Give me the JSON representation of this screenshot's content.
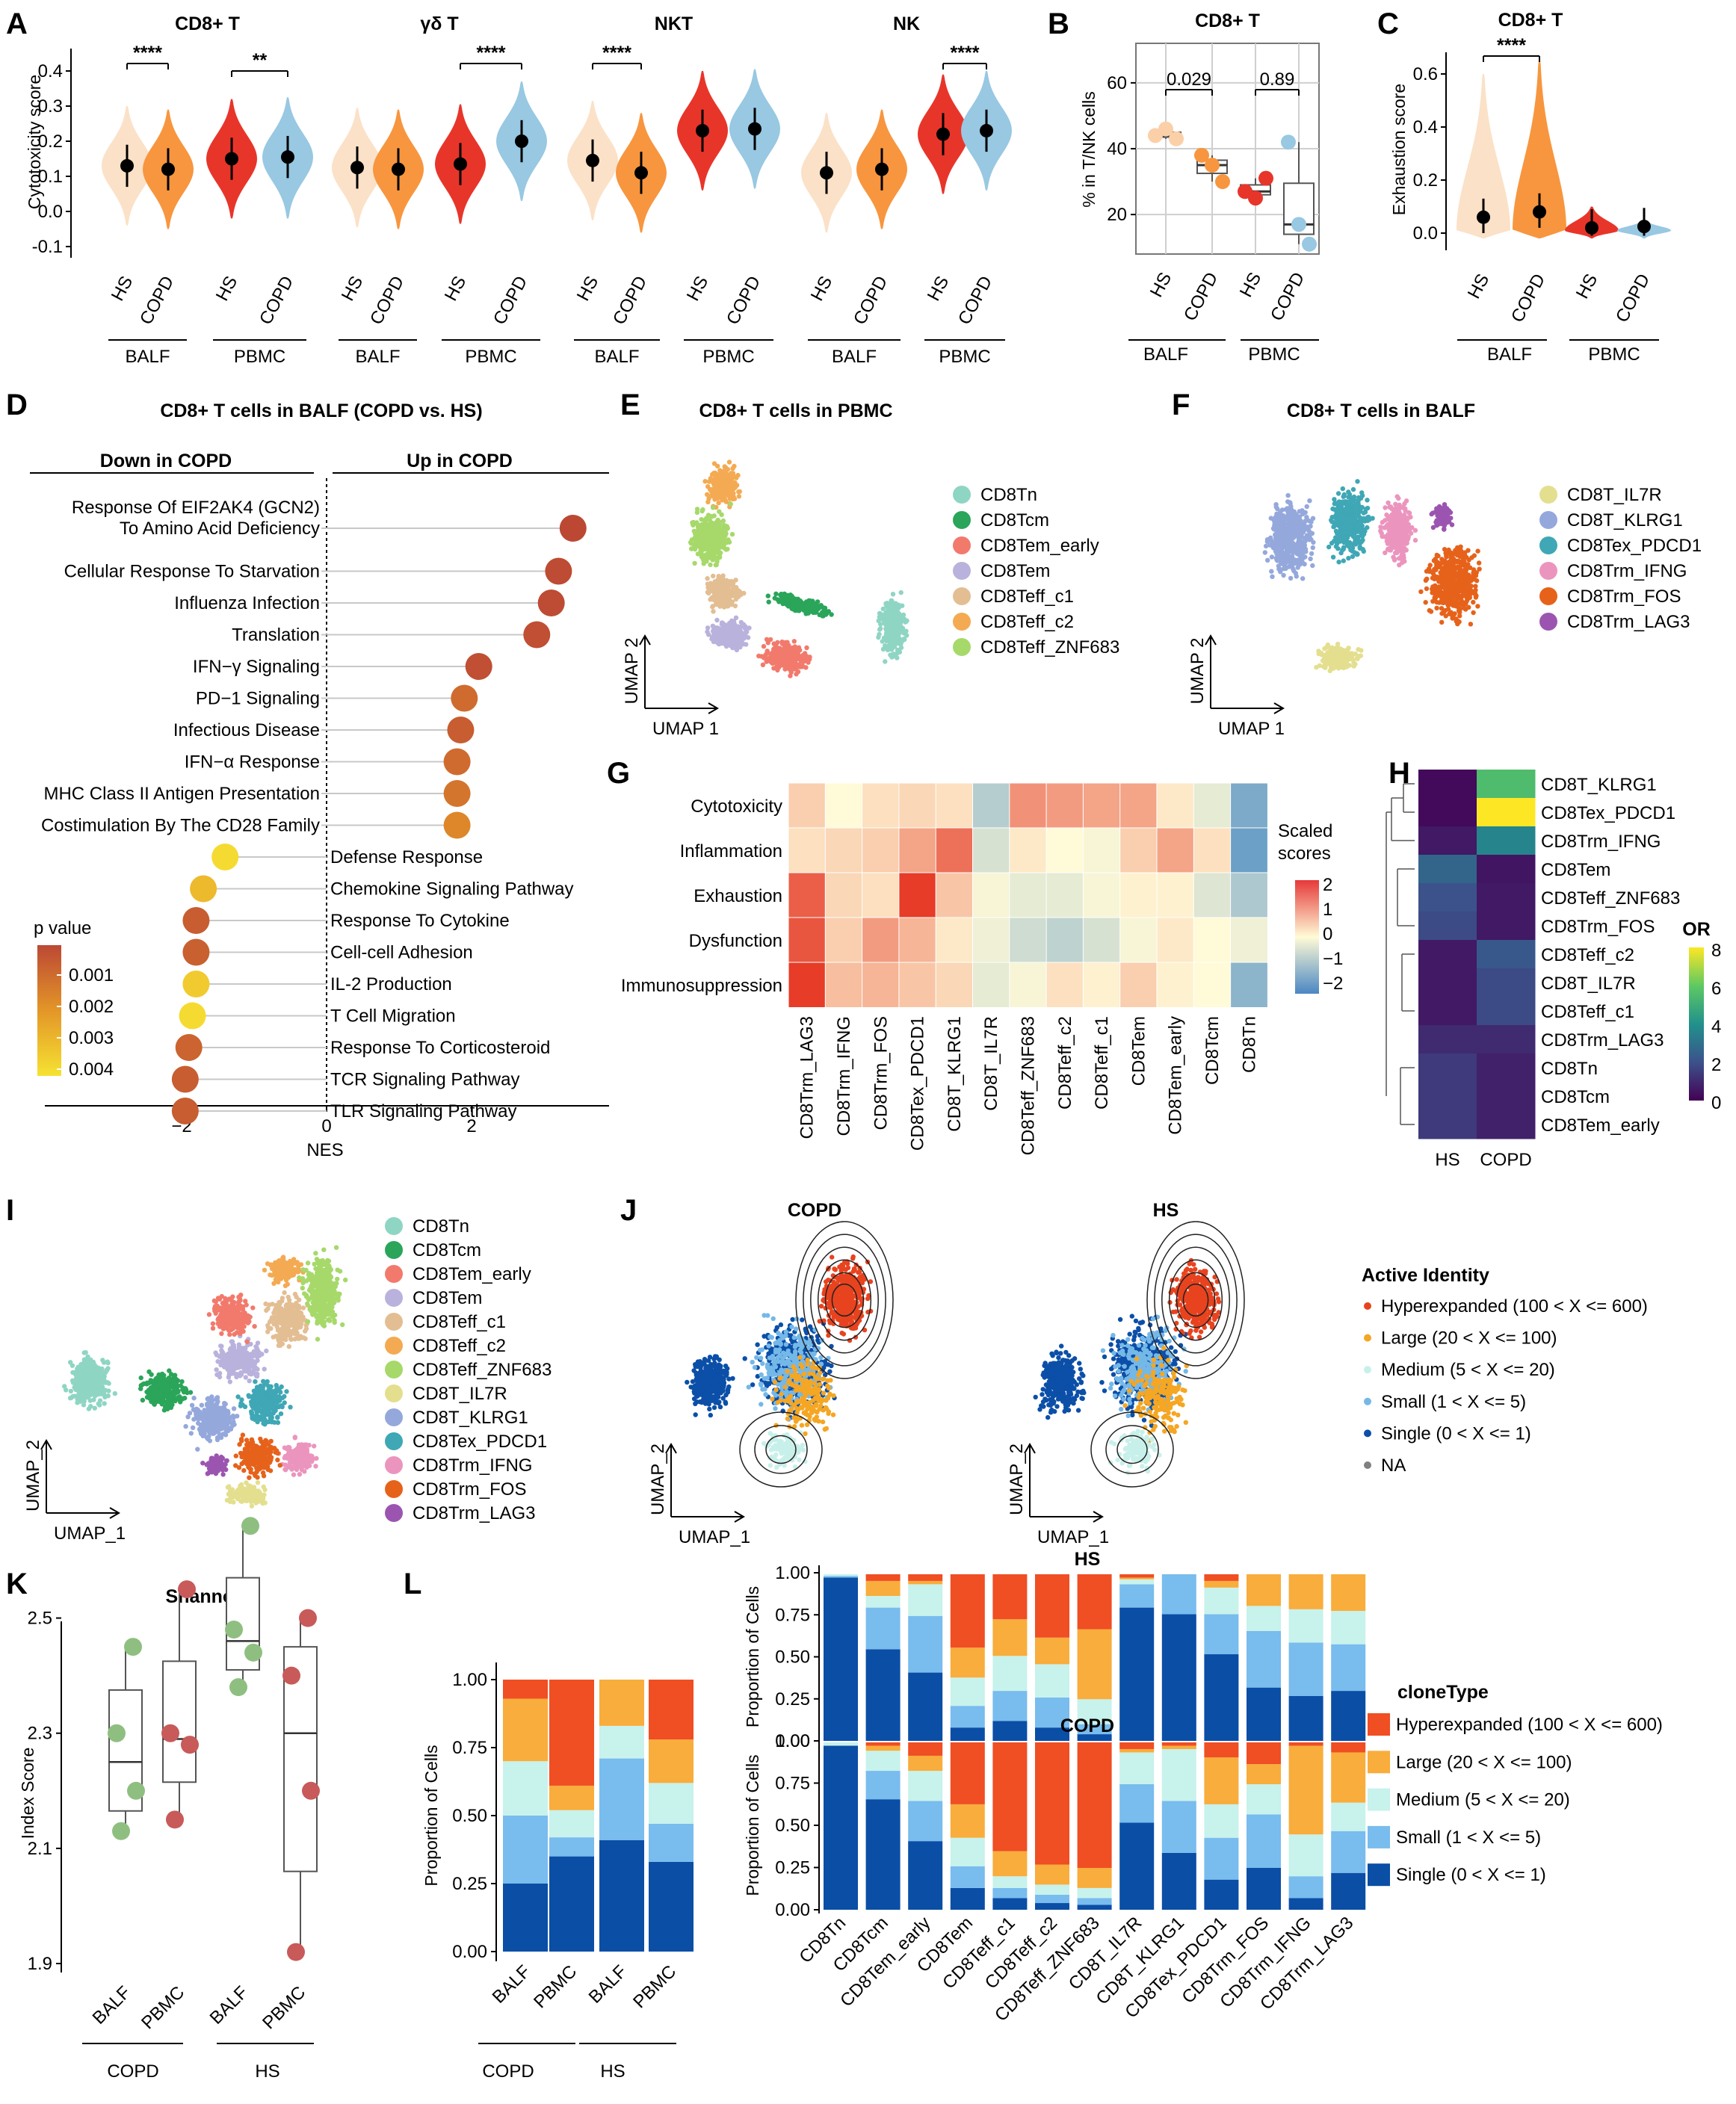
{
  "chart_data": [
    {
      "panel": "A",
      "type": "violin",
      "ylabel": "Cytotoxicity score",
      "yticks": [
        -0.1,
        0.0,
        0.1,
        0.2,
        0.3,
        0.4
      ],
      "groups": [
        "HS",
        "COPD",
        "HS",
        "COPD"
      ],
      "tissues": [
        "BALF",
        "PBMC"
      ],
      "subplots": [
        {
          "title": "CD8+ T",
          "medians": [
            0.13,
            0.12,
            0.15,
            0.155
          ],
          "colors": [
            "#fbe1c7",
            "#f7963f",
            "#e8352a",
            "#98c8e2"
          ],
          "comparisons": [
            {
              "pair": [
                0,
                1
              ],
              "label": "****"
            },
            {
              "pair": [
                2,
                3
              ],
              "label": "**"
            }
          ]
        },
        {
          "title": "γδ T",
          "medians": [
            0.125,
            0.12,
            0.135,
            0.2
          ],
          "colors": [
            "#fbe1c7",
            "#f7963f",
            "#e8352a",
            "#98c8e2"
          ],
          "comparisons": [
            {
              "pair": [
                2,
                3
              ],
              "label": "****"
            }
          ]
        },
        {
          "title": "NKT",
          "medians": [
            0.145,
            0.11,
            0.23,
            0.235
          ],
          "colors": [
            "#fbe1c7",
            "#f7963f",
            "#e8352a",
            "#98c8e2"
          ],
          "comparisons": [
            {
              "pair": [
                0,
                1
              ],
              "label": "****"
            }
          ]
        },
        {
          "title": "NK",
          "medians": [
            0.11,
            0.12,
            0.22,
            0.23
          ],
          "colors": [
            "#fbe1c7",
            "#f7963f",
            "#e8352a",
            "#98c8e2"
          ],
          "comparisons": [
            {
              "pair": [
                2,
                3
              ],
              "label": "****"
            }
          ]
        }
      ]
    },
    {
      "panel": "B",
      "type": "box",
      "title": "CD8+ T",
      "ylabel": "% in T/NK cells",
      "yticks": [
        20,
        40,
        60
      ],
      "categories": [
        "HS",
        "COPD",
        "HS",
        "COPD"
      ],
      "tissues": [
        "BALF",
        "PBMC"
      ],
      "points": [
        [
          44,
          46,
          43
        ],
        [
          38,
          35,
          30
        ],
        [
          27,
          25,
          31
        ],
        [
          42,
          17,
          11
        ]
      ],
      "comparisons": [
        {
          "pair": [
            0,
            1
          ],
          "label": "0.029"
        },
        {
          "pair": [
            2,
            3
          ],
          "label": "0.89"
        }
      ]
    },
    {
      "panel": "C",
      "type": "violin",
      "title": "CD8+ T",
      "ylabel": "Exhaustion score",
      "yticks": [
        0.0,
        0.2,
        0.4,
        0.6
      ],
      "categories": [
        "HS",
        "COPD",
        "HS",
        "COPD"
      ],
      "tissues": [
        "BALF",
        "PBMC"
      ],
      "medians": [
        0.06,
        0.08,
        0.02,
        0.025
      ],
      "comparisons": [
        {
          "pair": [
            0,
            1
          ],
          "label": "****"
        }
      ]
    },
    {
      "panel": "D",
      "type": "lollipop",
      "title": "CD8+ T cells in BALF (COPD vs. HS)",
      "xlabel": "NES",
      "xticks": [
        -2,
        0,
        2
      ],
      "left_header": "Down in COPD",
      "right_header": "Up in COPD",
      "legend_title": "p value",
      "legend_ticks": [
        "0.001",
        "0.002",
        "0.003",
        "0.004"
      ],
      "terms": [
        {
          "label": "Response Of EIF2AK4 (GCN2)\nTo Amino Acid Deficiency",
          "nes": 3.4,
          "p": 0.0002
        },
        {
          "label": "Cellular Response To Starvation",
          "nes": 3.2,
          "p": 0.0003
        },
        {
          "label": "Influenza Infection",
          "nes": 3.1,
          "p": 0.0003
        },
        {
          "label": "Translation",
          "nes": 2.9,
          "p": 0.0004
        },
        {
          "label": "IFN−γ Signaling",
          "nes": 2.1,
          "p": 0.0004
        },
        {
          "label": "PD−1 Signaling",
          "nes": 1.9,
          "p": 0.0012
        },
        {
          "label": "Infectious Disease",
          "nes": 1.85,
          "p": 0.0008
        },
        {
          "label": "IFN−α Response",
          "nes": 1.8,
          "p": 0.0012
        },
        {
          "label": "MHC Class II Antigen Presentation",
          "nes": 1.8,
          "p": 0.0015
        },
        {
          "label": "Costimulation By The CD28 Family",
          "nes": 1.8,
          "p": 0.002
        },
        {
          "label": "Defense Response",
          "nes": -1.4,
          "p": 0.0045
        },
        {
          "label": "Chemokine Signaling Pathway",
          "nes": -1.7,
          "p": 0.0035
        },
        {
          "label": "Response To Cytokine",
          "nes": -1.8,
          "p": 0.0008
        },
        {
          "label": "Cell-cell Adhesion",
          "nes": -1.8,
          "p": 0.0009
        },
        {
          "label": "IL-2 Production",
          "nes": -1.8,
          "p": 0.004
        },
        {
          "label": "T Cell Migration",
          "nes": -1.85,
          "p": 0.0045
        },
        {
          "label": "Response To Corticosteroid",
          "nes": -1.9,
          "p": 0.001
        },
        {
          "label": "TCR Signaling Pathway",
          "nes": -1.95,
          "p": 0.0008
        },
        {
          "label": "TLR Signaling Pathway",
          "nes": -1.95,
          "p": 0.0008
        }
      ]
    },
    {
      "panel": "E",
      "type": "scatter",
      "title": "CD8+ T cells in PBMC",
      "xlabel": "UMAP 1",
      "ylabel": "UMAP 2",
      "legend": [
        {
          "name": "CD8Tn",
          "color": "#8fd5c4"
        },
        {
          "name": "CD8Tcm",
          "color": "#2aa55a"
        },
        {
          "name": "CD8Tem_early",
          "color": "#f27a6c"
        },
        {
          "name": "CD8Tem",
          "color": "#b9b2dc"
        },
        {
          "name": "CD8Teff_c1",
          "color": "#e3be93"
        },
        {
          "name": "CD8Teff_c2",
          "color": "#f4aa52"
        },
        {
          "name": "CD8Teff_ZNF683",
          "color": "#a6d96a"
        }
      ]
    },
    {
      "panel": "F",
      "type": "scatter",
      "title": "CD8+ T cells in BALF",
      "xlabel": "UMAP 1",
      "ylabel": "UMAP 2",
      "legend": [
        {
          "name": "CD8T_IL7R",
          "color": "#e3df8e"
        },
        {
          "name": "CD8T_KLRG1",
          "color": "#95a8dc"
        },
        {
          "name": "CD8Tex_PDCD1",
          "color": "#3fa7b5"
        },
        {
          "name": "CD8Trm_IFNG",
          "color": "#eb95be"
        },
        {
          "name": "CD8Trm_FOS",
          "color": "#e6621b"
        },
        {
          "name": "CD8Trm_LAG3",
          "color": "#9b55b0"
        }
      ]
    },
    {
      "panel": "G",
      "type": "heatmap",
      "legend_title": "Scaled\nscores",
      "legend_ticks": [
        "2",
        "1",
        "0",
        "−1",
        "−2"
      ],
      "rows": [
        "Cytotoxicity",
        "Inflammation",
        "Exhaustion",
        "Dysfunction",
        "Immunosuppression"
      ],
      "columns": [
        "CD8Trm_LAG3",
        "CD8Trm_IFNG",
        "CD8Trm_FOS",
        "CD8Tex_PDCD1",
        "CD8T_KLRG1",
        "CD8T_IL7R",
        "CD8Teff_ZNF683",
        "CD8Teff_c2",
        "CD8Teff_c1",
        "CD8Tem",
        "CD8Tem_early",
        "CD8Tcm",
        "CD8Tn"
      ],
      "values": [
        [
          0.5,
          0.0,
          0.3,
          0.4,
          0.3,
          -0.9,
          1.2,
          1.1,
          1.0,
          1.0,
          0.2,
          -0.3,
          -1.6
        ],
        [
          0.3,
          0.4,
          0.5,
          1.0,
          1.6,
          -0.5,
          0.2,
          0.0,
          -0.1,
          0.5,
          1.0,
          0.3,
          -1.8
        ],
        [
          1.8,
          0.4,
          0.3,
          2.4,
          0.6,
          -0.1,
          -0.3,
          -0.3,
          -0.1,
          0.1,
          0.1,
          -0.4,
          -1.0
        ],
        [
          1.9,
          0.5,
          1.1,
          0.8,
          0.2,
          -0.2,
          -0.6,
          -0.8,
          -0.5,
          -0.1,
          0.2,
          0.0,
          -0.2
        ],
        [
          2.2,
          0.7,
          0.8,
          0.6,
          0.4,
          -0.3,
          -0.1,
          0.3,
          0.1,
          0.5,
          0.1,
          0.0,
          -1.4
        ]
      ]
    },
    {
      "panel": "H",
      "type": "heatmap",
      "legend_title": "OR",
      "legend_ticks": [
        "8",
        "6",
        "4",
        "2",
        "0"
      ],
      "columns": [
        "HS",
        "COPD"
      ],
      "rows": [
        "CD8T_KLRG1",
        "CD8Tex_PDCD1",
        "CD8Trm_IFNG",
        "CD8Tem",
        "CD8Teff_ZNF683",
        "CD8Trm_FOS",
        "CD8Teff_c2",
        "CD8T_IL7R",
        "CD8Teff_c1",
        "CD8Trm_LAG3",
        "CD8Tn",
        "CD8Tcm",
        "CD8Tem_early"
      ],
      "values": [
        [
          0.2,
          5.5
        ],
        [
          0.2,
          8.0
        ],
        [
          0.6,
          3.6
        ],
        [
          2.6,
          0.5
        ],
        [
          2.0,
          0.6
        ],
        [
          1.8,
          0.6
        ],
        [
          0.6,
          2.2
        ],
        [
          0.6,
          1.8
        ],
        [
          0.6,
          1.8
        ],
        [
          1.0,
          1.0
        ],
        [
          1.4,
          0.8
        ],
        [
          1.4,
          0.8
        ],
        [
          1.4,
          0.8
        ]
      ]
    },
    {
      "panel": "I",
      "type": "scatter",
      "xlabel": "UMAP_1",
      "ylabel": "UMAP_2",
      "legend": [
        {
          "name": "CD8Tn",
          "color": "#8fd5c4"
        },
        {
          "name": "CD8Tcm",
          "color": "#2aa55a"
        },
        {
          "name": "CD8Tem_early",
          "color": "#f27a6c"
        },
        {
          "name": "CD8Tem",
          "color": "#b9b2dc"
        },
        {
          "name": "CD8Teff_c1",
          "color": "#e3be93"
        },
        {
          "name": "CD8Teff_c2",
          "color": "#f4aa52"
        },
        {
          "name": "CD8Teff_ZNF683",
          "color": "#a6d96a"
        },
        {
          "name": "CD8T_IL7R",
          "color": "#e3df8e"
        },
        {
          "name": "CD8T_KLRG1",
          "color": "#95a8dc"
        },
        {
          "name": "CD8Tex_PDCD1",
          "color": "#3fa7b5"
        },
        {
          "name": "CD8Trm_IFNG",
          "color": "#eb95be"
        },
        {
          "name": "CD8Trm_FOS",
          "color": "#e6621b"
        },
        {
          "name": "CD8Trm_LAG3",
          "color": "#9b55b0"
        }
      ]
    },
    {
      "panel": "J",
      "type": "scatter",
      "subtitles": [
        "COPD",
        "HS"
      ],
      "xlabel": "UMAP_1",
      "ylabel": "UMAP_2",
      "legend_title": "Active Identity",
      "legend": [
        {
          "name": "Hyperexpanded (100 < X <= 600)",
          "color": "#e8431f"
        },
        {
          "name": "Large (20 < X <= 100)",
          "color": "#f5a623"
        },
        {
          "name": "Medium (5 < X <= 20)",
          "color": "#c8f0ea"
        },
        {
          "name": "Small (1 < X <= 5)",
          "color": "#74b8e8"
        },
        {
          "name": "Single (0 < X <= 1)",
          "color": "#0b4fa8"
        },
        {
          "name": "NA",
          "color": "#808080"
        }
      ]
    },
    {
      "panel": "K",
      "type": "box",
      "title": "Shannon",
      "ylabel": "Index Score",
      "yticks": [
        1.9,
        2.1,
        2.3,
        2.5
      ],
      "categories": [
        "BALF",
        "PBMC",
        "BALF",
        "PBMC"
      ],
      "groups": [
        "COPD",
        "HS"
      ],
      "points": [
        [
          2.45,
          2.3,
          2.2,
          2.13
        ],
        [
          2.55,
          2.3,
          2.28,
          2.15
        ],
        [
          2.66,
          2.48,
          2.44,
          2.38
        ],
        [
          2.5,
          2.4,
          2.2,
          1.92
        ]
      ],
      "colors": [
        "#8fbf80",
        "#c85a5a",
        "#8fbf80",
        "#c85a5a"
      ]
    },
    {
      "panel": "L",
      "type": "stacked_bar",
      "ylabel": "Proportion of Cells",
      "yticks": [
        "0.00",
        "0.25",
        "0.50",
        "0.75",
        "1.00"
      ],
      "categories": [
        "BALF",
        "PBMC",
        "BALF",
        "PBMC"
      ],
      "groups": [
        "COPD",
        "HS"
      ],
      "stack_order": [
        "Single",
        "Small",
        "Medium",
        "Large",
        "Hyperexpanded"
      ],
      "values": [
        [
          0.25,
          0.25,
          0.2,
          0.23,
          0.07
        ],
        [
          0.35,
          0.07,
          0.1,
          0.09,
          0.39
        ],
        [
          0.41,
          0.3,
          0.12,
          0.17,
          0.0
        ],
        [
          0.33,
          0.14,
          0.15,
          0.16,
          0.22
        ]
      ]
    },
    {
      "panel": "L-right",
      "type": "stacked_bar",
      "ylabel": "Proportion of Cells",
      "yticks": [
        "0.00",
        "0.25",
        "0.50",
        "0.75",
        "1.00"
      ],
      "legend_title": "cloneType",
      "legend": [
        {
          "name": "Hyperexpanded (100 < X <= 600)",
          "color": "#f04e23"
        },
        {
          "name": "Large (20 < X <= 100)",
          "color": "#f8ad3c"
        },
        {
          "name": "Medium (5 < X <= 20)",
          "color": "#c8f2ec"
        },
        {
          "name": "Small (1 < X <= 5)",
          "color": "#79bcee"
        },
        {
          "name": "Single (0 < X <= 1)",
          "color": "#0a4ea6"
        }
      ],
      "categories": [
        "CD8Tn",
        "CD8Tcm",
        "CD8Tem_early",
        "CD8Tem",
        "CD8Teff_c1",
        "CD8Teff_c2",
        "CD8Teff_ZNF683",
        "CD8T_IL7R",
        "CD8T_KLRG1",
        "CD8Tex_PDCD1",
        "CD8Trm_FOS",
        "CD8Trm_IFNG",
        "CD8Trm_LAG3"
      ],
      "facets": [
        {
          "title": "HS",
          "values": [
            [
              0.98,
              0.01,
              0.01,
              0.0,
              0.0
            ],
            [
              0.55,
              0.25,
              0.07,
              0.09,
              0.04
            ],
            [
              0.41,
              0.34,
              0.19,
              0.02,
              0.04
            ],
            [
              0.08,
              0.13,
              0.17,
              0.18,
              0.44
            ],
            [
              0.12,
              0.18,
              0.21,
              0.22,
              0.27
            ],
            [
              0.08,
              0.18,
              0.2,
              0.16,
              0.38
            ],
            [
              0.04,
              0.06,
              0.15,
              0.42,
              0.33
            ],
            [
              0.8,
              0.14,
              0.03,
              0.01,
              0.02
            ],
            [
              0.76,
              0.24,
              0.0,
              0.0,
              0.0
            ],
            [
              0.52,
              0.24,
              0.16,
              0.04,
              0.04
            ],
            [
              0.32,
              0.34,
              0.15,
              0.19,
              0.0
            ],
            [
              0.27,
              0.32,
              0.2,
              0.21,
              0.0
            ],
            [
              0.3,
              0.28,
              0.2,
              0.22,
              0.0
            ]
          ]
        },
        {
          "title": "COPD",
          "values": [
            [
              0.98,
              0.0,
              0.02,
              0.0,
              0.0
            ],
            [
              0.66,
              0.17,
              0.12,
              0.03,
              0.02
            ],
            [
              0.41,
              0.24,
              0.18,
              0.09,
              0.08
            ],
            [
              0.13,
              0.13,
              0.17,
              0.2,
              0.37
            ],
            [
              0.07,
              0.06,
              0.07,
              0.15,
              0.65
            ],
            [
              0.04,
              0.05,
              0.06,
              0.12,
              0.73
            ],
            [
              0.03,
              0.04,
              0.06,
              0.12,
              0.75
            ],
            [
              0.52,
              0.23,
              0.19,
              0.02,
              0.04
            ],
            [
              0.34,
              0.31,
              0.31,
              0.02,
              0.02
            ],
            [
              0.18,
              0.25,
              0.2,
              0.28,
              0.09
            ],
            [
              0.25,
              0.32,
              0.18,
              0.12,
              0.13
            ],
            [
              0.07,
              0.13,
              0.25,
              0.53,
              0.02
            ],
            [
              0.22,
              0.25,
              0.17,
              0.3,
              0.06
            ]
          ]
        }
      ]
    }
  ]
}
